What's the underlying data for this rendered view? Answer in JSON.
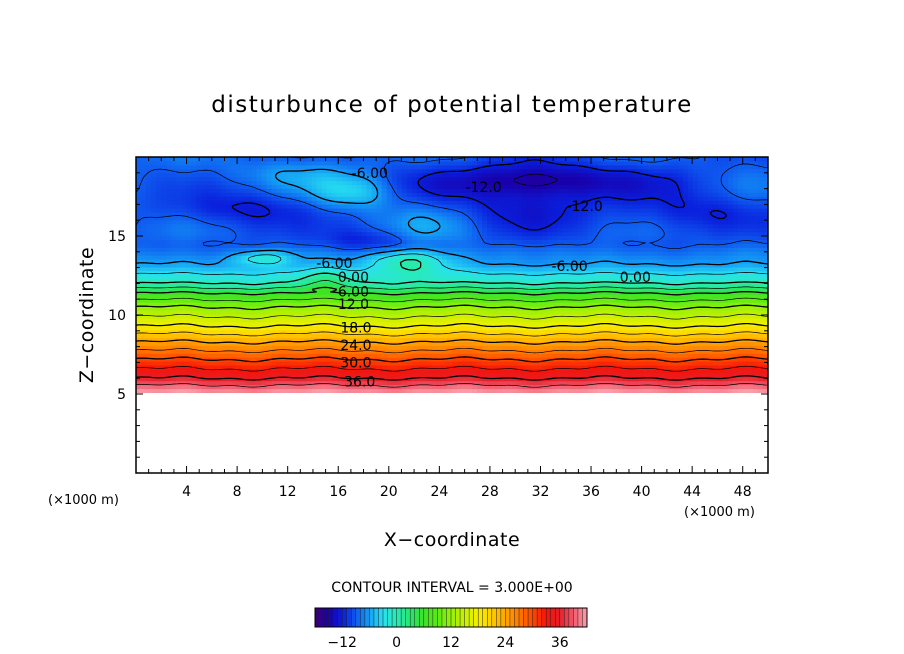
{
  "chart_data": {
    "type": "heatmap",
    "title": "disturbunce of potential temperature",
    "xlabel": "X−coordinate",
    "ylabel": "Z−coordinate",
    "x_unit_label": "(×1000 m)",
    "y_unit_label": "(×1000 m)",
    "xlim": [
      0,
      50
    ],
    "ylim": [
      0,
      20
    ],
    "x_ticks": [
      4,
      8,
      12,
      16,
      20,
      24,
      28,
      32,
      36,
      40,
      44,
      48
    ],
    "y_ticks": [
      5,
      10,
      15
    ],
    "colormap": "rainbow",
    "color_range": [
      -18,
      42
    ],
    "contour_interval_text": "CONTOUR INTERVAL = 3.000E+00",
    "colorbar_ticks": [
      -12,
      0,
      12,
      24,
      36
    ],
    "contour_labels": [
      "-6.00",
      "-12.0",
      "-12.0",
      "-6.00",
      "-6.00",
      "0.00",
      "0.00",
      "6.00",
      "12.0",
      "18.0",
      "24.0",
      "30.0",
      "36.0"
    ],
    "data_bottom_z": 5.1,
    "layers": [
      {
        "z": 5.1,
        "value": 42
      },
      {
        "z": 6.0,
        "value": 36
      },
      {
        "z": 7.2,
        "value": 30
      },
      {
        "z": 8.3,
        "value": 24
      },
      {
        "z": 9.3,
        "value": 18
      },
      {
        "z": 10.5,
        "value": 12
      },
      {
        "z": 11.4,
        "value": 6
      },
      {
        "z": 12.0,
        "value": 0
      },
      {
        "z": 13.2,
        "value": -6
      },
      {
        "z": 14.5,
        "value": -9
      },
      {
        "z": 20.0,
        "value": -9
      }
    ],
    "cold_anomalies": [
      {
        "x": 32,
        "z": 18.5,
        "value": -14
      },
      {
        "x": 9,
        "z": 16.5,
        "value": -12
      },
      {
        "x": 18,
        "z": 14.6,
        "value": -12
      }
    ],
    "warm_anomalies": [
      {
        "x": 17.5,
        "z": 17.8,
        "value": 0
      },
      {
        "x": 10,
        "z": 13.5,
        "value": -3
      },
      {
        "x": 21.5,
        "z": 13.7,
        "value": -1
      }
    ]
  }
}
